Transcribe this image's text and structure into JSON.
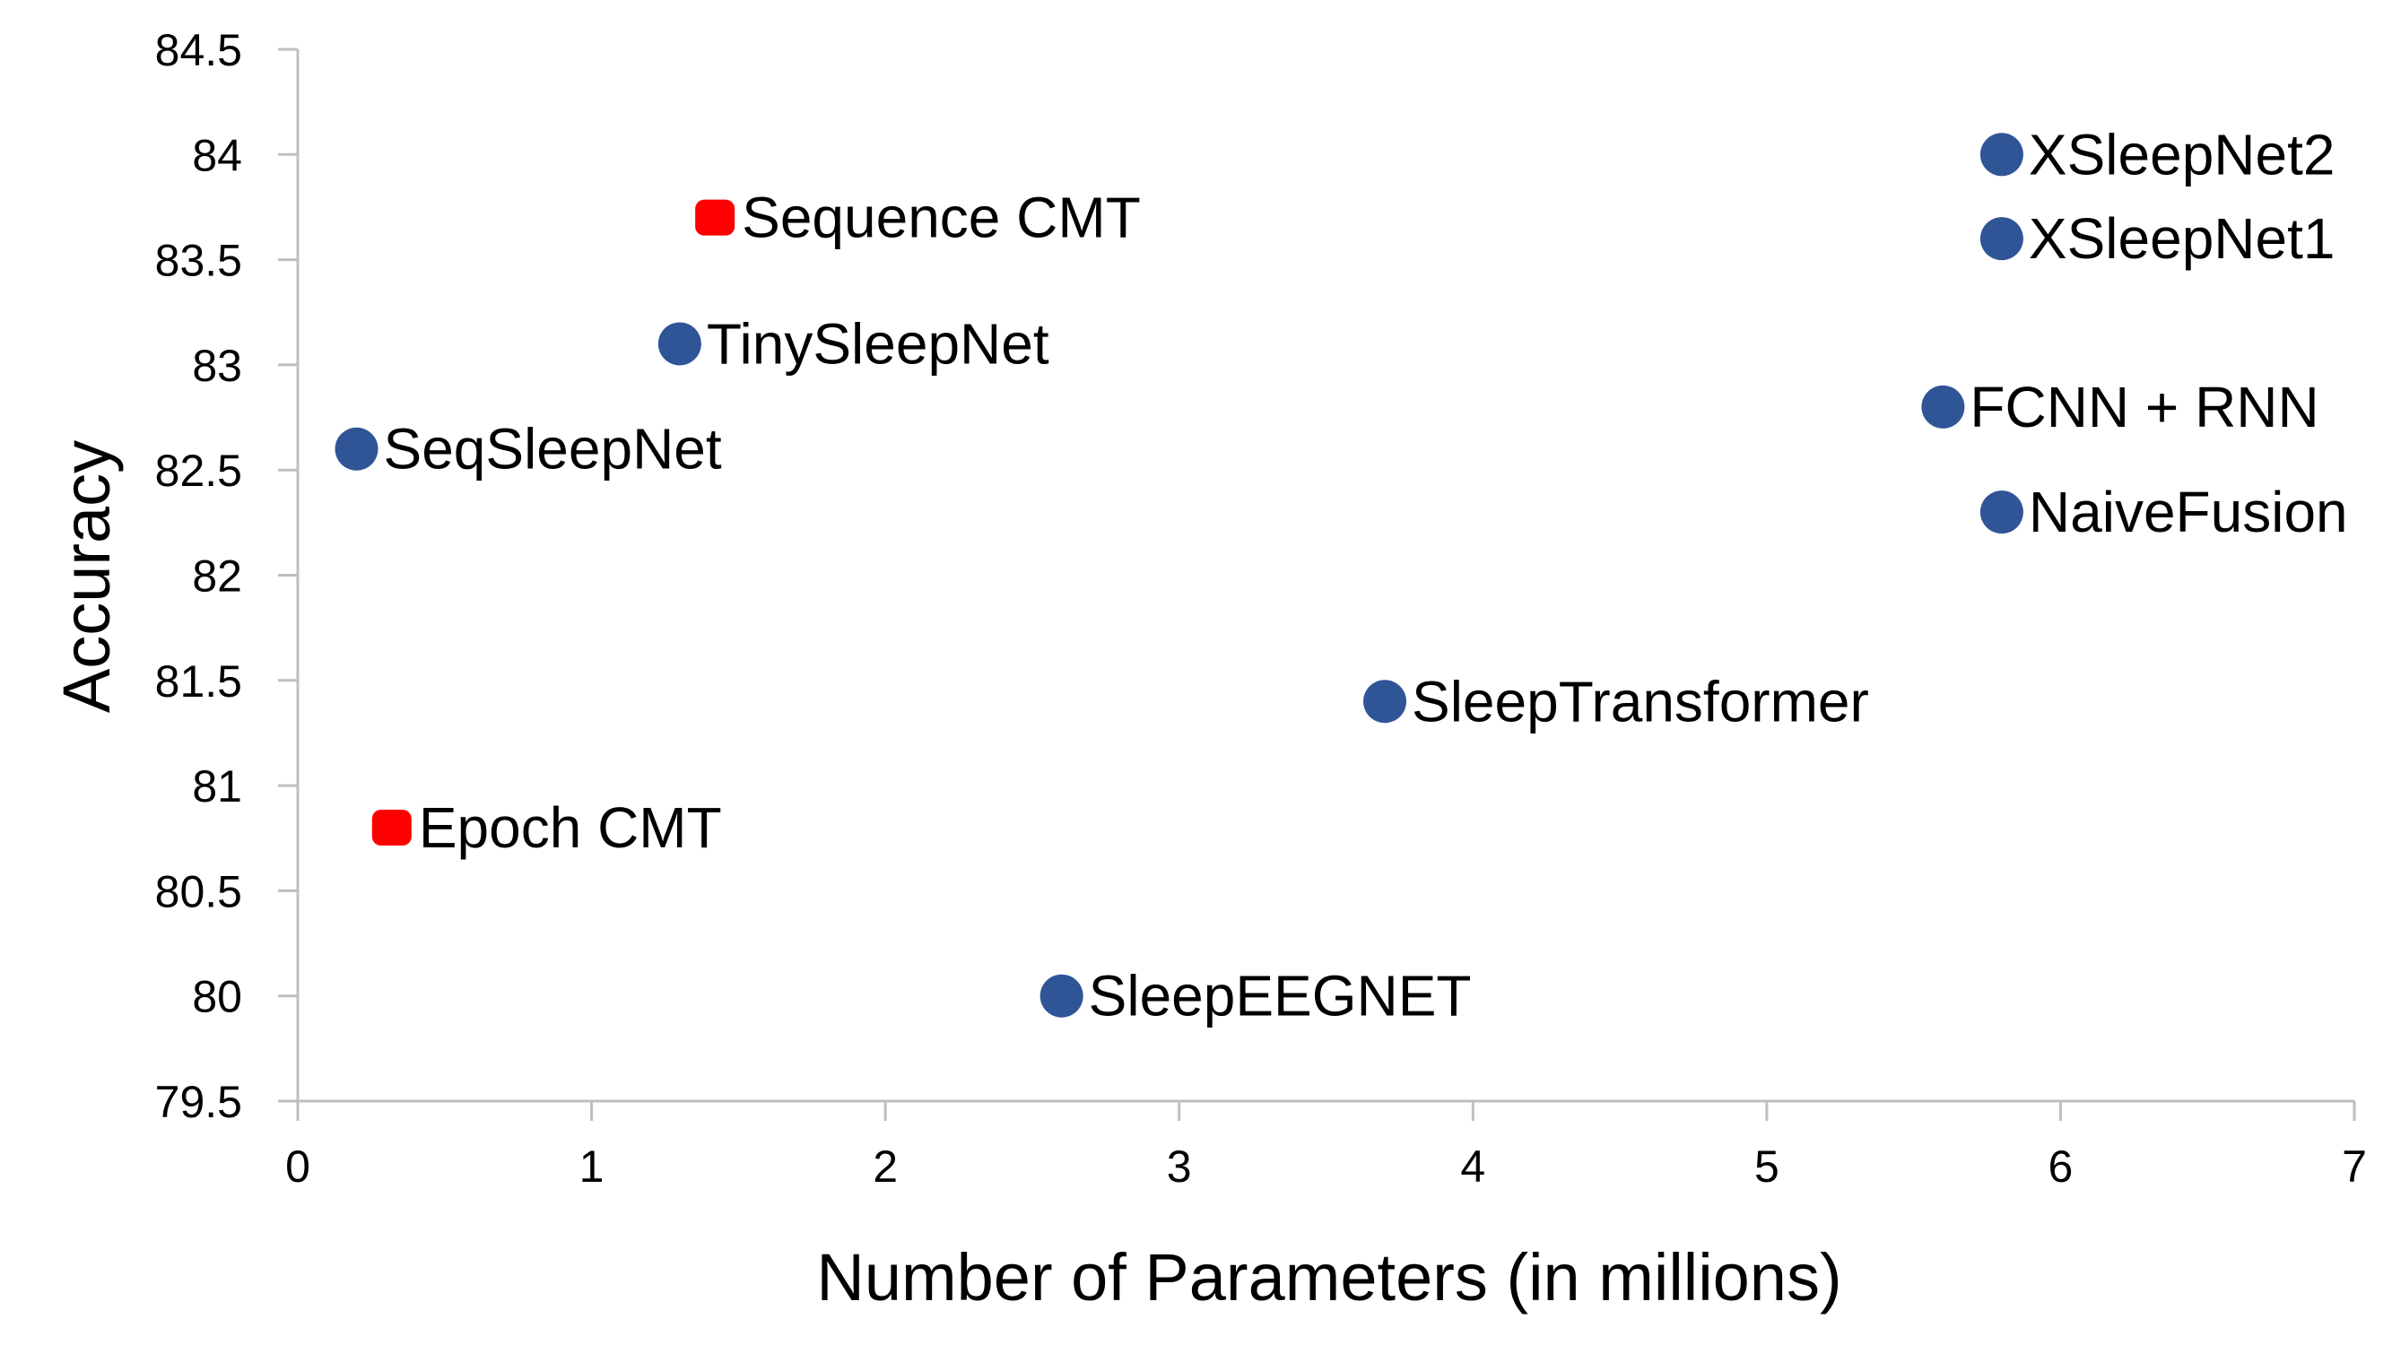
{
  "chart_data": {
    "type": "scatter",
    "xlabel": "Number of Parameters (in millions)",
    "ylabel": "Accuracy",
    "xlim": [
      0,
      7
    ],
    "ylim": [
      79.5,
      84.5
    ],
    "x_ticks": [
      "0",
      "1",
      "2",
      "3",
      "4",
      "5",
      "6",
      "7"
    ],
    "y_ticks": [
      "79.5",
      "80",
      "80.5",
      "81",
      "81.5",
      "82",
      "82.5",
      "83",
      "83.5",
      "84",
      "84.5"
    ],
    "grid": false,
    "legend": "none",
    "colors": {
      "circle": "#2f5597",
      "square": "#ff0000",
      "axis": "#bfbfbf"
    },
    "points": [
      {
        "label": "XSleepNet2",
        "x": 5.8,
        "y": 84.0,
        "marker": "circle"
      },
      {
        "label": "XSleepNet1",
        "x": 5.8,
        "y": 83.6,
        "marker": "circle"
      },
      {
        "label": "Sequence CMT",
        "x": 1.42,
        "y": 83.7,
        "marker": "square"
      },
      {
        "label": "TinySleepNet",
        "x": 1.3,
        "y": 83.1,
        "marker": "circle"
      },
      {
        "label": "FCNN + RNN",
        "x": 5.6,
        "y": 82.8,
        "marker": "circle"
      },
      {
        "label": "SeqSleepNet",
        "x": 0.2,
        "y": 82.6,
        "marker": "circle"
      },
      {
        "label": "NaiveFusion",
        "x": 5.8,
        "y": 82.3,
        "marker": "circle"
      },
      {
        "label": "SleepTransformer",
        "x": 3.7,
        "y": 81.4,
        "marker": "circle"
      },
      {
        "label": "Epoch CMT",
        "x": 0.32,
        "y": 80.8,
        "marker": "square"
      },
      {
        "label": "SleepEEGNET",
        "x": 2.6,
        "y": 80.0,
        "marker": "circle"
      }
    ]
  }
}
